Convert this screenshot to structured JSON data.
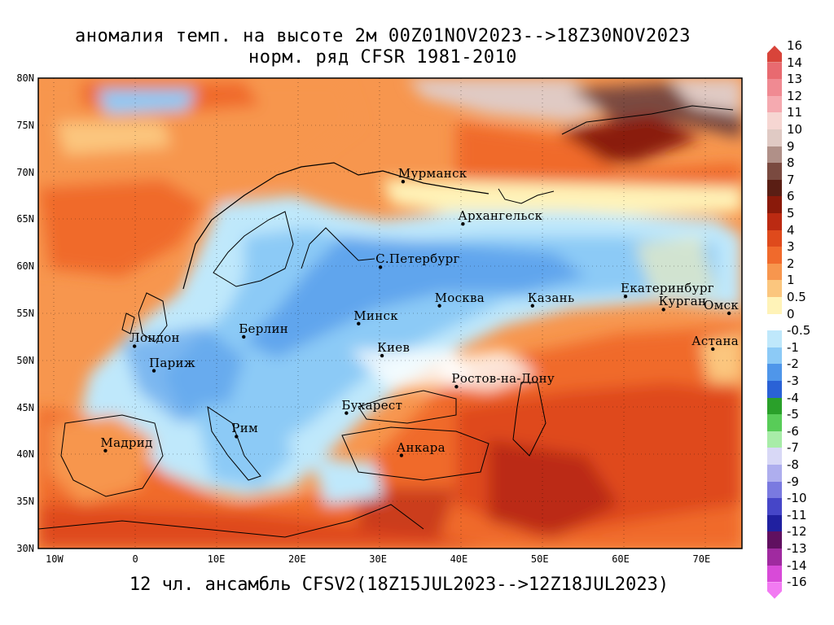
{
  "title_line1": "аномалия темп. на высоте 2м 00Z01NOV2023-->18Z30NOV2023",
  "title_line2": "норм. ряд CFSR 1981-2010",
  "footer": "12 чл. ансамбль CFSV2(18Z15JUL2023-->12Z18JUL2023)",
  "lat_labels": [
    "80N",
    "75N",
    "70N",
    "65N",
    "60N",
    "55N",
    "50N",
    "45N",
    "40N",
    "35N",
    "30N"
  ],
  "lon_labels": [
    "10W",
    "0",
    "10E",
    "20E",
    "30E",
    "40E",
    "50E",
    "60E",
    "70E"
  ],
  "cities": [
    {
      "name": "Мурманск",
      "lon": 33.1,
      "lat": 69.0
    },
    {
      "name": "Архангельск",
      "lon": 40.5,
      "lat": 64.5
    },
    {
      "name": "С.Петербург",
      "lon": 30.3,
      "lat": 59.9
    },
    {
      "name": "Москва",
      "lon": 37.6,
      "lat": 55.8
    },
    {
      "name": "Казань",
      "lon": 49.1,
      "lat": 55.8
    },
    {
      "name": "Екатеринбург",
      "lon": 60.6,
      "lat": 56.8
    },
    {
      "name": "Курган",
      "lon": 65.3,
      "lat": 55.4
    },
    {
      "name": "Омск",
      "lon": 73.4,
      "lat": 55.0
    },
    {
      "name": "Астана",
      "lon": 71.4,
      "lat": 51.2
    },
    {
      "name": "Минск",
      "lon": 27.6,
      "lat": 53.9
    },
    {
      "name": "Киев",
      "lon": 30.5,
      "lat": 50.5
    },
    {
      "name": "Берлин",
      "lon": 13.4,
      "lat": 52.5
    },
    {
      "name": "Лондон",
      "lon": -0.1,
      "lat": 51.5
    },
    {
      "name": "Париж",
      "lon": 2.3,
      "lat": 48.9
    },
    {
      "name": "Ростов-на-Дону",
      "lon": 39.7,
      "lat": 47.2
    },
    {
      "name": "Бухарест",
      "lon": 26.1,
      "lat": 44.4
    },
    {
      "name": "Рим",
      "lon": 12.5,
      "lat": 41.9
    },
    {
      "name": "Мадрид",
      "lon": -3.7,
      "lat": 40.4
    },
    {
      "name": "Анкара",
      "lon": 32.9,
      "lat": 39.9
    }
  ],
  "colorbar": [
    {
      "label": "16",
      "color": "#d8443a"
    },
    {
      "label": "14",
      "color": "#e86a70"
    },
    {
      "label": "13",
      "color": "#f08a92"
    },
    {
      "label": "12",
      "color": "#f5aab0"
    },
    {
      "label": "11",
      "color": "#f6d6d2"
    },
    {
      "label": "10",
      "color": "#e0cac4"
    },
    {
      "label": "9",
      "color": "#b09088"
    },
    {
      "label": "8",
      "color": "#7a4a40"
    },
    {
      "label": "7",
      "color": "#5a1e14"
    },
    {
      "label": "6",
      "color": "#8a1a0a"
    },
    {
      "label": "5",
      "color": "#bb2a12"
    },
    {
      "label": "4",
      "color": "#df4a1c"
    },
    {
      "label": "3",
      "color": "#f06a2c"
    },
    {
      "label": "2",
      "color": "#f7964e"
    },
    {
      "label": "1",
      "color": "#fbc67e"
    },
    {
      "label": "0.5",
      "color": "#fff3b8"
    },
    {
      "label": "0",
      "color": "#ffffff"
    },
    {
      "label": "-0.5",
      "color": "#bfe8fb"
    },
    {
      "label": "-1",
      "color": "#8ccaf6"
    },
    {
      "label": "-2",
      "color": "#4f96ea"
    },
    {
      "label": "-3",
      "color": "#2a62d6"
    },
    {
      "label": "-4",
      "color": "#2aa02a"
    },
    {
      "label": "-5",
      "color": "#58cc58"
    },
    {
      "label": "-6",
      "color": "#a8eca8"
    },
    {
      "label": "-7",
      "color": "#d8d8f6"
    },
    {
      "label": "-8",
      "color": "#aeaeee"
    },
    {
      "label": "-9",
      "color": "#7a7ae0"
    },
    {
      "label": "-10",
      "color": "#4646c8"
    },
    {
      "label": "-11",
      "color": "#2020a0"
    },
    {
      "label": "-12",
      "color": "#601060"
    },
    {
      "label": "-13",
      "color": "#a02aa0"
    },
    {
      "label": "-14",
      "color": "#d84ad8"
    },
    {
      "label": "-16",
      "color": "#f27af2"
    }
  ]
}
